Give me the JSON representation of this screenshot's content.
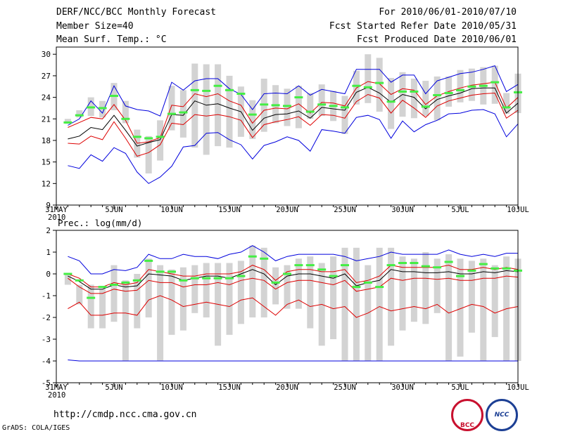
{
  "header": {
    "title": "DERF/NCC/BCC Monthly Forecast",
    "member_size": "Member Size=40",
    "variable": "Mean Surf. Temp.: °C",
    "period": "For 2010/06/01-2010/07/10",
    "started": "Fcst Started Refer Date 2010/05/31",
    "produced": "Fcst Produced Date 2010/06/01"
  },
  "footer": {
    "url": "http://cmdp.ncc.cma.gov.cn",
    "grads": "GrADS: COLA/IGES",
    "logo_bcc": "BCC",
    "logo_ncc": "NCC"
  },
  "colors": {
    "box": "#d3d3d3",
    "obs": "#44ee44",
    "mean": "#000000",
    "inner": "#dd0000",
    "outer": "#0000dd"
  },
  "chart_data": [
    {
      "type": "box-line",
      "title": "",
      "ylabel": "Mean Surf. Temp.: °C",
      "ylim": [
        9,
        31
      ],
      "yticks": [
        9,
        12,
        15,
        18,
        21,
        24,
        27,
        30
      ],
      "x_day_range": [
        0,
        40
      ],
      "xticks": [
        {
          "day": 0,
          "label": "31MAY",
          "year": "2010"
        },
        {
          "day": 5,
          "label": "5JUN"
        },
        {
          "day": 10,
          "label": "10JUN"
        },
        {
          "day": 15,
          "label": "15JUN"
        },
        {
          "day": 20,
          "label": "20JUN"
        },
        {
          "day": 25,
          "label": "25JUN"
        },
        {
          "day": 30,
          "label": "30JUN"
        },
        {
          "day": 35,
          "label": "5JUL"
        },
        {
          "day": 40,
          "label": "10JUL"
        }
      ],
      "days": [
        1,
        2,
        3,
        4,
        5,
        6,
        7,
        8,
        9,
        10,
        11,
        12,
        13,
        14,
        15,
        16,
        17,
        18,
        19,
        20,
        21,
        22,
        23,
        24,
        25,
        26,
        27,
        28,
        29,
        30,
        31,
        32,
        33,
        34,
        35,
        36,
        37,
        38,
        39,
        40
      ],
      "box_low": [
        20.3,
        21.2,
        21.4,
        21.2,
        22.2,
        20.4,
        15.6,
        13.4,
        15.2,
        19.4,
        18.4,
        17.0,
        16.0,
        17.2,
        17.0,
        18.5,
        18.2,
        19.2,
        20.4,
        20.0,
        19.7,
        21.0,
        21.4,
        20.7,
        18.9,
        23.0,
        23.2,
        22.0,
        19.6,
        21.3,
        21.1,
        21.4,
        20.8,
        22.7,
        23.3,
        23.5,
        23.0,
        23.1,
        21.7,
        21.8
      ],
      "box_high": [
        21.0,
        22.2,
        24.0,
        23.5,
        26.0,
        23.5,
        19.5,
        18.6,
        20.8,
        25.6,
        25.0,
        28.7,
        28.6,
        28.6,
        27.0,
        25.5,
        23.6,
        26.6,
        25.7,
        25.2,
        25.6,
        24.6,
        25.8,
        24.9,
        24.2,
        27.7,
        30.0,
        29.5,
        26.7,
        27.5,
        26.6,
        26.3,
        26.9,
        26.9,
        27.8,
        28.0,
        28.2,
        28.4,
        24.6,
        27.3
      ],
      "obs": [
        20.5,
        21.5,
        22.6,
        22.5,
        24.2,
        21.0,
        18.5,
        18.3,
        18.5,
        21.7,
        21.9,
        25.0,
        24.9,
        25.6,
        25.0,
        24.5,
        21.6,
        23.0,
        22.9,
        22.8,
        24.0,
        22.0,
        23.0,
        22.8,
        22.6,
        25.6,
        25.4,
        26.0,
        23.4,
        24.8,
        24.8,
        22.7,
        24.3,
        24.6,
        25.0,
        25.5,
        25.6,
        26.1,
        22.6,
        24.7
      ],
      "series": [
        {
          "name": "upper outer",
          "color": "#0000dd",
          "values": [
            20.1,
            21.0,
            23.5,
            21.8,
            25.6,
            22.8,
            22.3,
            22.1,
            21.4,
            26.1,
            25.0,
            26.3,
            26.6,
            26.6,
            25.2,
            24.4,
            22.3,
            24.5,
            24.6,
            24.5,
            25.6,
            24.3,
            25.1,
            24.8,
            24.5,
            27.9,
            27.9,
            27.9,
            26.1,
            27.1,
            27.1,
            24.5,
            26.3,
            26.8,
            27.3,
            27.5,
            27.9,
            28.4,
            24.8,
            25.8
          ]
        },
        {
          "name": "upper inner",
          "color": "#dd0000",
          "values": [
            19.8,
            20.5,
            21.2,
            21.0,
            23.0,
            20.8,
            17.6,
            17.8,
            18.4,
            22.9,
            22.7,
            24.5,
            24.1,
            24.5,
            23.5,
            22.9,
            20.4,
            22.2,
            22.5,
            22.4,
            23.1,
            21.8,
            23.3,
            23.2,
            22.8,
            25.3,
            26.2,
            25.9,
            24.4,
            25.2,
            25.0,
            23.0,
            24.2,
            24.8,
            25.3,
            25.7,
            25.9,
            26.1,
            22.5,
            24.0
          ]
        },
        {
          "name": "ensemble mean",
          "color": "#000000",
          "values": [
            18.2,
            18.6,
            19.8,
            19.5,
            21.5,
            19.4,
            17.2,
            17.7,
            18.1,
            21.6,
            21.5,
            23.5,
            22.9,
            23.1,
            22.5,
            22.0,
            19.4,
            21.1,
            21.6,
            21.7,
            22.1,
            21.1,
            22.6,
            22.4,
            22.2,
            24.7,
            25.4,
            24.6,
            23.3,
            24.4,
            24.0,
            22.4,
            23.7,
            24.2,
            24.6,
            25.2,
            25.3,
            25.3,
            21.8,
            23.2
          ]
        },
        {
          "name": "lower inner",
          "color": "#dd0000",
          "values": [
            17.6,
            17.5,
            18.6,
            18.1,
            20.6,
            18.3,
            15.8,
            16.3,
            17.4,
            20.4,
            20.2,
            21.6,
            21.4,
            21.6,
            21.3,
            20.8,
            18.4,
            20.2,
            20.6,
            20.9,
            21.3,
            20.1,
            21.6,
            21.5,
            21.1,
            23.4,
            24.4,
            23.9,
            21.8,
            23.6,
            22.5,
            21.2,
            22.8,
            23.5,
            23.9,
            24.3,
            24.5,
            24.6,
            21.1,
            22.2
          ]
        },
        {
          "name": "lower outer",
          "color": "#0000dd",
          "values": [
            14.5,
            14.1,
            16.0,
            15.1,
            17.0,
            16.2,
            13.6,
            12.0,
            12.9,
            14.4,
            17.1,
            17.3,
            19.0,
            19.1,
            18.1,
            17.4,
            15.4,
            17.3,
            17.8,
            18.5,
            18.0,
            16.5,
            19.5,
            19.3,
            19.0,
            21.2,
            21.5,
            20.9,
            18.3,
            20.7,
            19.2,
            20.2,
            20.8,
            21.7,
            21.8,
            22.2,
            22.3,
            21.7,
            18.5,
            20.3
          ]
        }
      ]
    },
    {
      "type": "box-line",
      "title": "Prec.: log(mm/d)",
      "ylabel": "Prec.: log(mm/d)",
      "ylim": [
        -5,
        2
      ],
      "yticks": [
        -5,
        -4,
        -3,
        -2,
        -1,
        0,
        1,
        2
      ],
      "x_day_range": [
        0,
        40
      ],
      "xticks": [
        {
          "day": 0,
          "label": "31MAY",
          "year": "2010"
        },
        {
          "day": 5,
          "label": "5JUN"
        },
        {
          "day": 10,
          "label": "10JUN"
        },
        {
          "day": 15,
          "label": "15JUN"
        },
        {
          "day": 20,
          "label": "20JUN"
        },
        {
          "day": 25,
          "label": "25JUN"
        },
        {
          "day": 30,
          "label": "30JUN"
        },
        {
          "day": 35,
          "label": "5JUL"
        },
        {
          "day": 40,
          "label": "10JUL"
        }
      ],
      "days": [
        1,
        2,
        3,
        4,
        5,
        6,
        7,
        8,
        9,
        10,
        11,
        12,
        13,
        14,
        15,
        16,
        17,
        18,
        19,
        20,
        21,
        22,
        23,
        24,
        25,
        26,
        27,
        28,
        29,
        30,
        31,
        32,
        33,
        34,
        35,
        36,
        37,
        38,
        39,
        40
      ],
      "box_low": [
        -0.5,
        -1.4,
        -2.5,
        -2.5,
        -2.2,
        -4.0,
        -2.5,
        -2.0,
        -4.0,
        -2.8,
        -2.6,
        -1.8,
        -2.0,
        -3.3,
        -2.8,
        -2.3,
        -2.0,
        -2.0,
        -1.4,
        -1.6,
        -1.6,
        -2.5,
        -3.3,
        -3.0,
        -4.0,
        -4.0,
        -4.0,
        -4.0,
        -3.3,
        -2.6,
        -2.2,
        -2.3,
        -1.8,
        -4.0,
        -3.8,
        -2.7,
        -4.0,
        -2.9,
        -4.0,
        -4.0
      ],
      "box_high": [
        0.0,
        -0.5,
        -0.5,
        -0.7,
        0.4,
        -0.3,
        0.0,
        0.7,
        0.4,
        0.2,
        0.3,
        0.4,
        0.5,
        0.5,
        0.5,
        0.6,
        1.3,
        1.2,
        0.3,
        0.4,
        0.7,
        0.8,
        0.5,
        0.8,
        1.2,
        1.2,
        0.4,
        1.2,
        1.2,
        0.8,
        0.7,
        1.0,
        0.7,
        0.9,
        0.7,
        0.6,
        0.7,
        0.4,
        0.8,
        0.7
      ],
      "obs": [
        0.0,
        -0.3,
        -1.1,
        -0.6,
        -0.5,
        -0.4,
        -0.3,
        0.6,
        0.1,
        0.1,
        -0.3,
        -0.2,
        -0.2,
        -0.2,
        -0.2,
        -0.1,
        0.8,
        0.7,
        -0.4,
        0.0,
        0.4,
        0.4,
        0.2,
        -0.1,
        0.4,
        -0.6,
        -0.4,
        -0.6,
        0.4,
        0.5,
        0.5,
        0.35,
        0.3,
        0.55,
        -0.1,
        0.15,
        0.45,
        0.25,
        0.25,
        0.15
      ],
      "series": [
        {
          "name": "upper outer",
          "color": "#0000dd",
          "values": [
            0.8,
            0.6,
            0.0,
            0.0,
            0.2,
            0.15,
            0.3,
            0.9,
            0.7,
            0.7,
            0.9,
            0.8,
            0.8,
            0.7,
            0.9,
            1.0,
            1.3,
            1.0,
            0.6,
            0.8,
            0.9,
            0.9,
            0.9,
            0.9,
            0.8,
            0.6,
            0.7,
            0.8,
            1.0,
            0.9,
            0.9,
            0.9,
            0.9,
            1.1,
            0.9,
            0.8,
            0.9,
            0.8,
            0.95,
            0.95
          ]
        },
        {
          "name": "upper inner",
          "color": "#dd0000",
          "values": [
            0.0,
            -0.2,
            -0.6,
            -0.6,
            -0.4,
            -0.5,
            -0.4,
            0.2,
            0.1,
            0.0,
            -0.1,
            -0.1,
            0.0,
            0.0,
            0.0,
            0.1,
            0.4,
            0.2,
            -0.3,
            0.1,
            0.2,
            0.2,
            0.1,
            0.1,
            0.2,
            -0.4,
            -0.3,
            -0.1,
            0.4,
            0.3,
            0.3,
            0.3,
            0.3,
            0.4,
            0.2,
            0.2,
            0.3,
            0.2,
            0.3,
            0.2
          ]
        },
        {
          "name": "ensemble mean",
          "color": "#000000",
          "values": [
            -0.1,
            -0.35,
            -0.7,
            -0.7,
            -0.5,
            -0.6,
            -0.55,
            0.0,
            -0.05,
            -0.1,
            -0.3,
            -0.2,
            -0.1,
            -0.1,
            -0.2,
            0.0,
            0.2,
            0.0,
            -0.5,
            -0.1,
            0.0,
            0.0,
            -0.1,
            -0.2,
            0.0,
            -0.55,
            -0.4,
            -0.3,
            0.2,
            0.1,
            0.1,
            0.05,
            0.05,
            0.1,
            0.0,
            0.0,
            0.1,
            0.05,
            0.15,
            0.1
          ]
        },
        {
          "name": "lower inner",
          "color": "#dd0000",
          "values": [
            -0.2,
            -0.6,
            -0.9,
            -0.9,
            -0.7,
            -0.8,
            -0.75,
            -0.3,
            -0.4,
            -0.4,
            -0.6,
            -0.5,
            -0.5,
            -0.4,
            -0.5,
            -0.3,
            -0.2,
            -0.3,
            -0.7,
            -0.4,
            -0.3,
            -0.3,
            -0.4,
            -0.5,
            -0.3,
            -0.8,
            -0.7,
            -0.6,
            -0.2,
            -0.3,
            -0.2,
            -0.2,
            -0.25,
            -0.2,
            -0.3,
            -0.3,
            -0.2,
            -0.2,
            -0.1,
            -0.15
          ]
        },
        {
          "name": "lower outer",
          "color": "#dd0000",
          "values": [
            -1.6,
            -1.3,
            -1.9,
            -1.9,
            -1.8,
            -1.8,
            -1.9,
            -1.2,
            -1.0,
            -1.2,
            -1.5,
            -1.4,
            -1.3,
            -1.4,
            -1.5,
            -1.2,
            -1.1,
            -1.5,
            -1.9,
            -1.4,
            -1.2,
            -1.5,
            -1.4,
            -1.6,
            -1.5,
            -2.0,
            -1.8,
            -1.5,
            -1.7,
            -1.6,
            -1.5,
            -1.6,
            -1.4,
            -1.8,
            -1.6,
            -1.4,
            -1.5,
            -1.8,
            -1.6,
            -1.5
          ]
        },
        {
          "name": "minimum",
          "color": "#0000dd",
          "values": [
            -3.95,
            -4.0,
            -4.0,
            -4.0,
            -4.0,
            -4.0,
            -4.0,
            -4.0,
            -4.0,
            -4.0,
            -4.0,
            -4.0,
            -4.0,
            -4.0,
            -4.0,
            -4.0,
            -4.0,
            -4.0,
            -4.0,
            -4.0,
            -4.0,
            -4.0,
            -4.0,
            -4.0,
            -4.0,
            -4.0,
            -4.0,
            -4.0,
            -4.0,
            -4.0,
            -4.0,
            -4.0,
            -4.0,
            -4.0,
            -4.0,
            -4.0,
            -4.0,
            -4.0,
            -4.0,
            -4.0
          ]
        }
      ]
    }
  ]
}
